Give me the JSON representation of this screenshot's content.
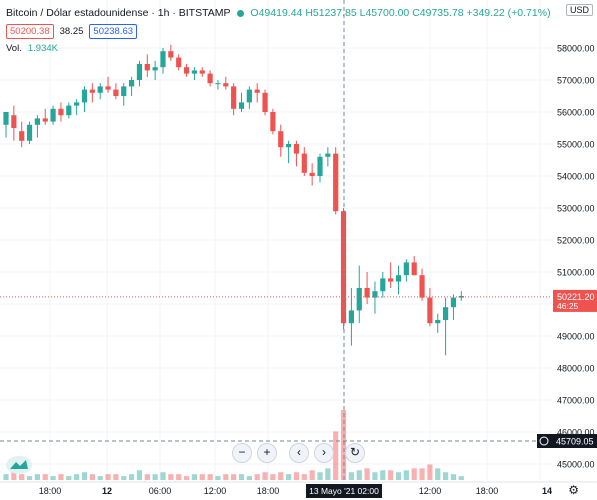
{
  "legend": {
    "symbol": "Bitcoin / Dólar estadounidense · 1h · BITSTAMP",
    "open": "O49419.44",
    "high": "H51237.85",
    "low": "L45700.00",
    "close": "C49735.78",
    "change": "+349.22 (+0.71%)"
  },
  "bid_ask": {
    "bid": "50200.38",
    "spread": "38.25",
    "ask": "50238.63"
  },
  "volume": {
    "label": "Vol.",
    "value": "1.934K"
  },
  "currency": "USD",
  "controls": {
    "minus": "−",
    "plus": "+",
    "left": "‹",
    "right": "›",
    "reset": "↻"
  },
  "price_label": {
    "value": "50221.20",
    "countdown": "46:25"
  },
  "crosshair_label": "45709.05",
  "crosshair_time": "13 Mayo '21 02:00",
  "colors": {
    "up": "#26a69a",
    "down": "#ef5350",
    "grid": "#f0f3fa",
    "text": "#131722"
  },
  "chart_data": {
    "type": "candlestick",
    "y_axis_ticks": [
      "58000.00",
      "57000.00",
      "56000.00",
      "55000.00",
      "54000.00",
      "53000.00",
      "52000.00",
      "51000.00",
      "50000.00",
      "49000.00",
      "48000.00",
      "47000.00",
      "46000.00",
      "45000.00"
    ],
    "ylim": [
      44700,
      59300
    ],
    "x_axis_ticks": [
      "18:00",
      "12",
      "06:00",
      "12:00",
      "18:00",
      "13 Mayo '21",
      "02:00",
      "12:00",
      "18:00",
      "14"
    ],
    "candles": [
      {
        "o": 55600,
        "h": 55900,
        "l": 55200,
        "c": 56000
      },
      {
        "o": 55900,
        "h": 56200,
        "l": 55100,
        "c": 55500
      },
      {
        "o": 55400,
        "h": 55700,
        "l": 54900,
        "c": 55100
      },
      {
        "o": 55100,
        "h": 55700,
        "l": 55000,
        "c": 55600
      },
      {
        "o": 55600,
        "h": 55900,
        "l": 55200,
        "c": 55800
      },
      {
        "o": 55800,
        "h": 56100,
        "l": 55600,
        "c": 55700
      },
      {
        "o": 55700,
        "h": 56200,
        "l": 55600,
        "c": 56100
      },
      {
        "o": 56100,
        "h": 56300,
        "l": 55700,
        "c": 55900
      },
      {
        "o": 55900,
        "h": 56300,
        "l": 55800,
        "c": 56200
      },
      {
        "o": 56200,
        "h": 56400,
        "l": 55900,
        "c": 56300
      },
      {
        "o": 56300,
        "h": 56800,
        "l": 56000,
        "c": 56700
      },
      {
        "o": 56700,
        "h": 56900,
        "l": 56300,
        "c": 56600
      },
      {
        "o": 56600,
        "h": 56900,
        "l": 56400,
        "c": 56800
      },
      {
        "o": 56800,
        "h": 57100,
        "l": 56600,
        "c": 56700
      },
      {
        "o": 56700,
        "h": 56900,
        "l": 56400,
        "c": 56500
      },
      {
        "o": 56500,
        "h": 56900,
        "l": 56200,
        "c": 56800
      },
      {
        "o": 56800,
        "h": 57100,
        "l": 56500,
        "c": 57000
      },
      {
        "o": 57000,
        "h": 57600,
        "l": 56800,
        "c": 57500
      },
      {
        "o": 57500,
        "h": 57800,
        "l": 57100,
        "c": 57300
      },
      {
        "o": 57300,
        "h": 57600,
        "l": 57000,
        "c": 57400
      },
      {
        "o": 57400,
        "h": 58000,
        "l": 57200,
        "c": 57900
      },
      {
        "o": 57900,
        "h": 58100,
        "l": 57600,
        "c": 57700
      },
      {
        "o": 57700,
        "h": 57800,
        "l": 57300,
        "c": 57400
      },
      {
        "o": 57400,
        "h": 57500,
        "l": 57100,
        "c": 57200
      },
      {
        "o": 57200,
        "h": 57400,
        "l": 57000,
        "c": 57300
      },
      {
        "o": 57300,
        "h": 57400,
        "l": 57100,
        "c": 57200
      },
      {
        "o": 57200,
        "h": 57300,
        "l": 56800,
        "c": 56900
      },
      {
        "o": 56900,
        "h": 57000,
        "l": 56700,
        "c": 56900
      },
      {
        "o": 56900,
        "h": 57100,
        "l": 56700,
        "c": 56800
      },
      {
        "o": 56800,
        "h": 56900,
        "l": 55900,
        "c": 56100
      },
      {
        "o": 56100,
        "h": 56600,
        "l": 56000,
        "c": 56300
      },
      {
        "o": 56300,
        "h": 56800,
        "l": 56100,
        "c": 56700
      },
      {
        "o": 56700,
        "h": 56900,
        "l": 56300,
        "c": 56600
      },
      {
        "o": 56600,
        "h": 56700,
        "l": 55900,
        "c": 56000
      },
      {
        "o": 56000,
        "h": 56100,
        "l": 55300,
        "c": 55400
      },
      {
        "o": 55400,
        "h": 55600,
        "l": 54600,
        "c": 54900
      },
      {
        "o": 54900,
        "h": 55100,
        "l": 54400,
        "c": 55000
      },
      {
        "o": 55000,
        "h": 55100,
        "l": 54300,
        "c": 54700
      },
      {
        "o": 54700,
        "h": 54900,
        "l": 54000,
        "c": 54100
      },
      {
        "o": 54100,
        "h": 54400,
        "l": 53700,
        "c": 54000
      },
      {
        "o": 54000,
        "h": 54700,
        "l": 53800,
        "c": 54600
      },
      {
        "o": 54600,
        "h": 54900,
        "l": 54300,
        "c": 54700
      },
      {
        "o": 54700,
        "h": 54900,
        "l": 52800,
        "c": 52900
      },
      {
        "o": 52900,
        "h": 53000,
        "l": 49200,
        "c": 49400
      },
      {
        "o": 49400,
        "h": 50500,
        "l": 48700,
        "c": 49800
      },
      {
        "o": 49800,
        "h": 51200,
        "l": 49400,
        "c": 50500
      },
      {
        "o": 50500,
        "h": 51000,
        "l": 50000,
        "c": 50200
      },
      {
        "o": 50200,
        "h": 50700,
        "l": 49700,
        "c": 50400
      },
      {
        "o": 50400,
        "h": 51000,
        "l": 50200,
        "c": 50800
      },
      {
        "o": 50800,
        "h": 51300,
        "l": 50500,
        "c": 50700
      },
      {
        "o": 50700,
        "h": 51200,
        "l": 50300,
        "c": 50900
      },
      {
        "o": 50900,
        "h": 51400,
        "l": 50700,
        "c": 51300
      },
      {
        "o": 51300,
        "h": 51500,
        "l": 50900,
        "c": 50900
      },
      {
        "o": 50900,
        "h": 51100,
        "l": 50100,
        "c": 50200
      },
      {
        "o": 50200,
        "h": 50500,
        "l": 49300,
        "c": 49400
      },
      {
        "o": 49400,
        "h": 49700,
        "l": 49100,
        "c": 49500
      },
      {
        "o": 49500,
        "h": 50200,
        "l": 48400,
        "c": 49900
      },
      {
        "o": 49900,
        "h": 50300,
        "l": 49500,
        "c": 50200
      },
      {
        "o": 50200,
        "h": 50400,
        "l": 50100,
        "c": 50250
      }
    ],
    "volumes": [
      3,
      4,
      3,
      2,
      3,
      3,
      2,
      3,
      2,
      3,
      4,
      3,
      2,
      3,
      3,
      2,
      3,
      5,
      3,
      3,
      4,
      3,
      3,
      2,
      3,
      3,
      3,
      2,
      3,
      3,
      3,
      2,
      3,
      4,
      3,
      4,
      3,
      4,
      3,
      5,
      4,
      6,
      25,
      36,
      4,
      5,
      6,
      4,
      5,
      5,
      4,
      5,
      6,
      6,
      8,
      6,
      4,
      3,
      2
    ],
    "volume_max": 36
  }
}
